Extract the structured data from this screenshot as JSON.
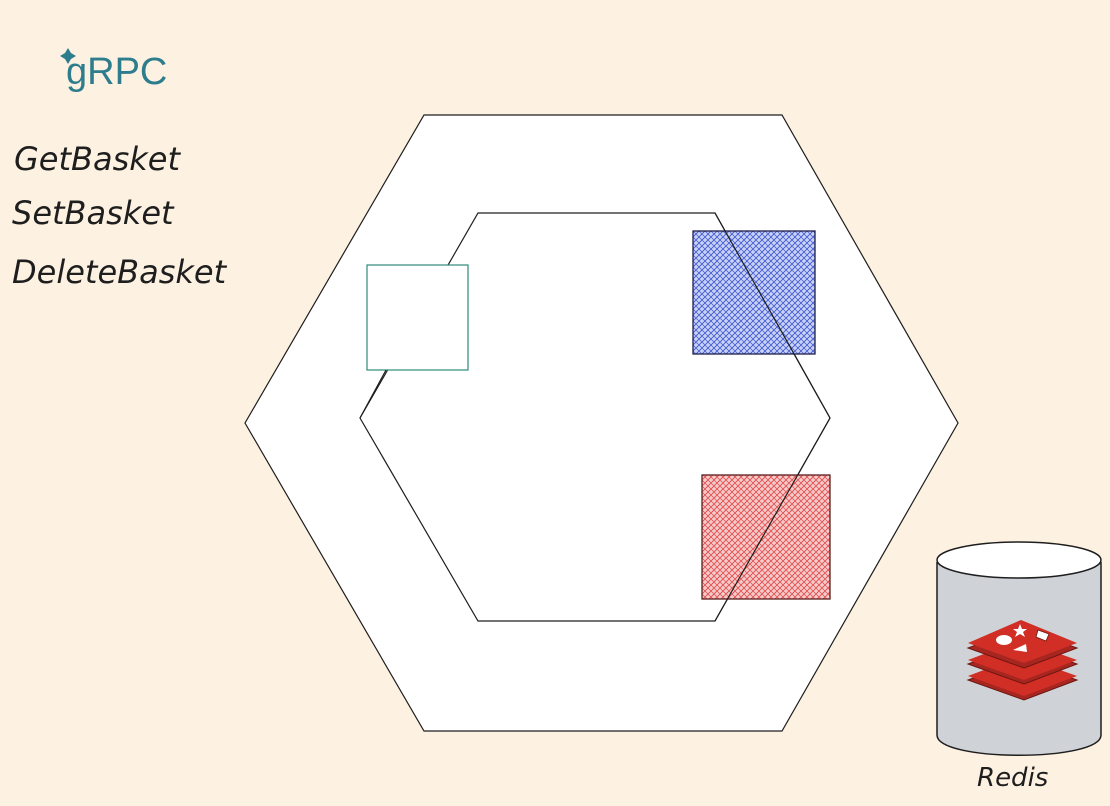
{
  "logo": {
    "name": "grpc-logo",
    "text": "gRPC",
    "color": "#2d7d8c"
  },
  "api_methods": [
    "GetBasket",
    "SetBasket",
    "DeleteBasket"
  ],
  "database": {
    "label": "Redis",
    "icon": "redis-logo-icon",
    "body_color": "#cfd3d7",
    "logo_color": "#d12e25"
  },
  "colors": {
    "background": "#fdf1e2",
    "hexagon_fill": "#ffffff",
    "stroke": "#1e1e1e",
    "adapter_port_stroke": "#2f8a7a",
    "blue_block": "#4a63d8",
    "red_block": "#e85a5a"
  }
}
